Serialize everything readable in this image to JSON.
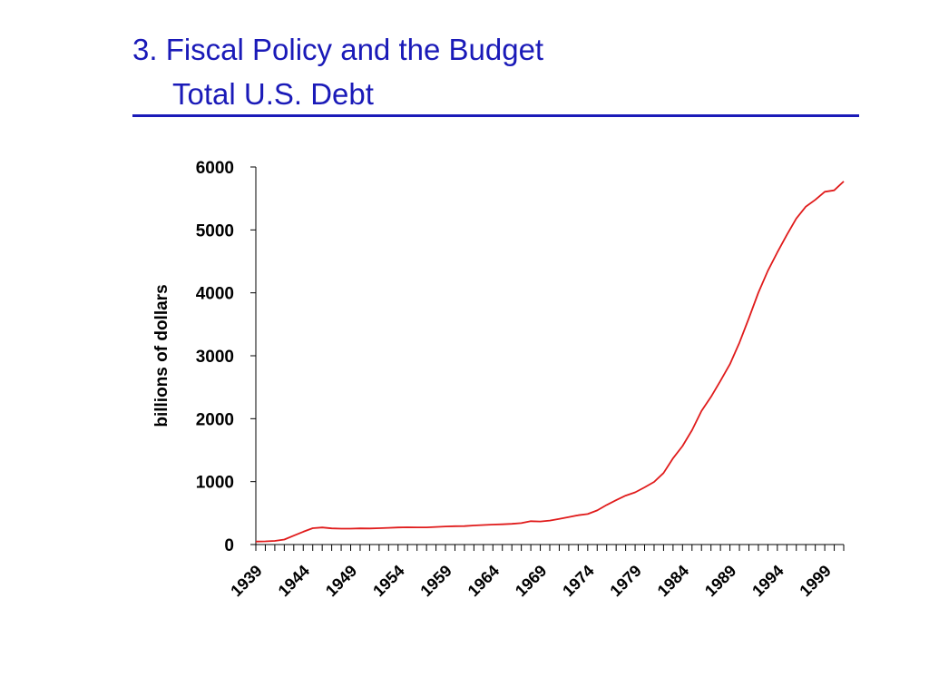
{
  "slide": {
    "title_line1": "3. Fiscal Policy and the Budget",
    "title_line2": "Total U.S. Debt"
  },
  "colors": {
    "title": "#1a1ab8",
    "series": "#e01b1b",
    "axis": "#000000"
  },
  "chart_data": {
    "type": "line",
    "title": "Total U.S. Debt",
    "xlabel": "",
    "ylabel": "billions of dollars",
    "xlim": [
      1939,
      2001
    ],
    "ylim": [
      0,
      6000
    ],
    "yticks": [
      0,
      1000,
      2000,
      3000,
      4000,
      5000,
      6000
    ],
    "xtick_labels": [
      "1939",
      "1944",
      "1949",
      "1954",
      "1959",
      "1964",
      "1969",
      "1974",
      "1979",
      "1984",
      "1989",
      "1994",
      "1999"
    ],
    "grid": false,
    "legend": "none",
    "series": [
      {
        "x": [
          1939,
          1940,
          1941,
          1942,
          1943,
          1944,
          1945,
          1946,
          1947,
          1948,
          1949,
          1950,
          1951,
          1952,
          1953,
          1954,
          1955,
          1956,
          1957,
          1958,
          1959,
          1960,
          1961,
          1962,
          1963,
          1964,
          1965,
          1966,
          1967,
          1968,
          1969,
          1970,
          1971,
          1972,
          1973,
          1974,
          1975,
          1976,
          1977,
          1978,
          1979,
          1980,
          1981,
          1982,
          1983,
          1984,
          1985,
          1986,
          1987,
          1988,
          1989,
          1990,
          1991,
          1992,
          1993,
          1994,
          1995,
          1996,
          1997,
          1998,
          1999,
          2000,
          2001
        ],
        "values": [
          48,
          51,
          58,
          79,
          142,
          204,
          260,
          271,
          257,
          252,
          253,
          257,
          255,
          259,
          266,
          271,
          274,
          273,
          272,
          280,
          287,
          291,
          293,
          303,
          310,
          317,
          322,
          329,
          341,
          370,
          366,
          381,
          408,
          436,
          466,
          484,
          542,
          629,
          706,
          777,
          829,
          909,
          995,
          1137,
          1372,
          1565,
          1817,
          2121,
          2346,
          2601,
          2868,
          3206,
          3598,
          4002,
          4351,
          4643,
          4921,
          5181,
          5369,
          5478,
          5606,
          5629,
          5770
        ]
      }
    ]
  }
}
